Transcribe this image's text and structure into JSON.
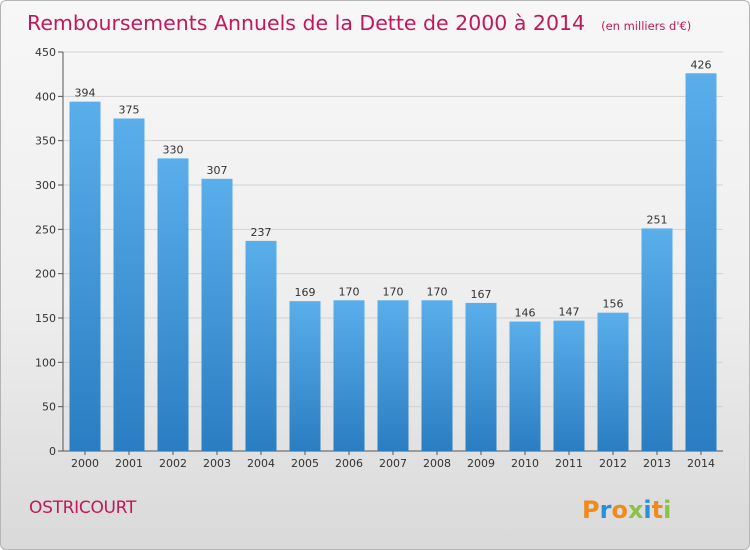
{
  "chart_data": {
    "type": "bar",
    "title": "Remboursements Annuels de la Dette de 2000 à 2014",
    "unit": "(en milliers d'€)",
    "categories": [
      "2000",
      "2001",
      "2002",
      "2003",
      "2004",
      "2005",
      "2006",
      "2007",
      "2008",
      "2009",
      "2010",
      "2011",
      "2012",
      "2013",
      "2014"
    ],
    "values": [
      394,
      375,
      330,
      307,
      237,
      169,
      170,
      170,
      170,
      167,
      146,
      147,
      156,
      251,
      426
    ],
    "ylim": [
      0,
      450
    ],
    "yticks": [
      0,
      50,
      100,
      150,
      200,
      250,
      300,
      350,
      400,
      450
    ],
    "grid": true,
    "xlabel": "",
    "ylabel": ""
  },
  "footer": {
    "commune": "OSTRICOURT",
    "logo": "Proxiti"
  },
  "colors": {
    "title": "#c2185b",
    "bar_top": "#5aaeea",
    "bar_bottom": "#2a7dc2",
    "grid": "#d2d2d2"
  }
}
